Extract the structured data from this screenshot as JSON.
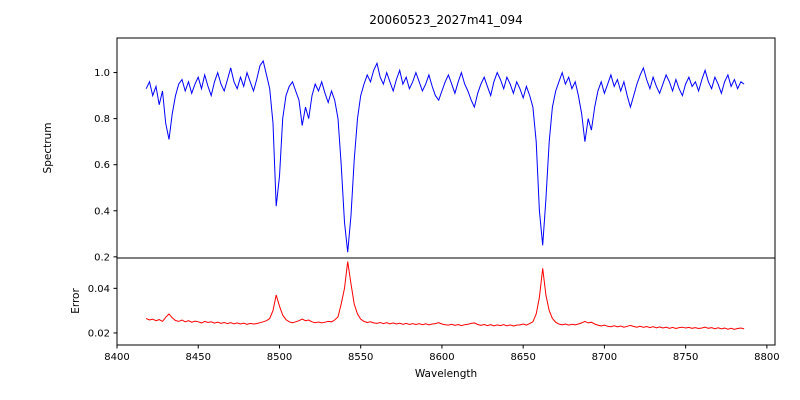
{
  "figure": {
    "background": "#ffffff",
    "axis_color": "#000000"
  },
  "chart_data": {
    "type": "line",
    "title": "20060523_2027m41_094",
    "xlabel": "Wavelength",
    "legend": "none",
    "grid": false,
    "x_start": 8418,
    "x_step": 2,
    "xlim": [
      8400,
      8805
    ],
    "xticks": [
      8400,
      8450,
      8500,
      8550,
      8600,
      8650,
      8700,
      8750,
      8800
    ],
    "xtick_labels": [
      "8400",
      "8450",
      "8500",
      "8550",
      "8600",
      "8650",
      "8700",
      "8750",
      "8800"
    ],
    "subplots": [
      {
        "name": "spectrum",
        "ylabel": "Spectrum",
        "color": "#0000ff",
        "ylim": [
          0.195,
          1.15
        ],
        "yticks": [
          0.2,
          0.4,
          0.6,
          0.8,
          1.0
        ],
        "ytick_labels": [
          "0.2",
          "0.4",
          "0.6",
          "0.8",
          "1.0"
        ],
        "absorption_lines_x": [
          8498,
          8542,
          8662
        ],
        "values": [
          0.93,
          0.96,
          0.9,
          0.94,
          0.86,
          0.92,
          0.78,
          0.71,
          0.82,
          0.9,
          0.95,
          0.97,
          0.92,
          0.96,
          0.91,
          0.95,
          0.98,
          0.93,
          0.99,
          0.94,
          0.9,
          0.96,
          1.0,
          0.95,
          0.92,
          0.97,
          1.02,
          0.96,
          0.93,
          0.98,
          0.94,
          1.0,
          0.96,
          0.92,
          0.97,
          1.03,
          1.05,
          0.99,
          0.93,
          0.78,
          0.42,
          0.55,
          0.8,
          0.9,
          0.94,
          0.96,
          0.92,
          0.88,
          0.77,
          0.85,
          0.8,
          0.9,
          0.95,
          0.92,
          0.96,
          0.91,
          0.87,
          0.92,
          0.88,
          0.8,
          0.6,
          0.35,
          0.22,
          0.38,
          0.62,
          0.8,
          0.9,
          0.95,
          0.99,
          0.96,
          1.01,
          1.04,
          0.98,
          0.95,
          1.0,
          0.96,
          0.92,
          0.97,
          1.01,
          0.95,
          0.98,
          0.93,
          0.96,
          1.0,
          0.96,
          0.92,
          0.95,
          0.99,
          0.94,
          0.9,
          0.88,
          0.92,
          0.96,
          0.99,
          0.95,
          0.91,
          0.96,
          1.0,
          0.95,
          0.92,
          0.88,
          0.85,
          0.91,
          0.95,
          0.98,
          0.94,
          0.9,
          0.96,
          1.0,
          0.97,
          0.93,
          0.98,
          0.95,
          0.91,
          0.96,
          0.93,
          0.89,
          0.94,
          0.9,
          0.85,
          0.7,
          0.4,
          0.25,
          0.45,
          0.7,
          0.85,
          0.92,
          0.96,
          1.0,
          0.95,
          0.98,
          0.93,
          0.96,
          0.9,
          0.82,
          0.7,
          0.8,
          0.75,
          0.85,
          0.92,
          0.96,
          0.91,
          0.95,
          0.99,
          0.94,
          0.97,
          0.92,
          0.96,
          0.9,
          0.85,
          0.9,
          0.95,
          0.99,
          1.02,
          0.97,
          0.93,
          0.98,
          0.94,
          0.91,
          0.95,
          0.99,
          0.96,
          0.92,
          0.97,
          0.93,
          0.9,
          0.95,
          0.98,
          0.94,
          0.96,
          0.92,
          0.97,
          1.01,
          0.96,
          0.93,
          0.98,
          0.95,
          0.91,
          0.96,
          0.99,
          0.94,
          0.97,
          0.93,
          0.96,
          0.95
        ]
      },
      {
        "name": "error",
        "ylabel": "Error",
        "color": "#ff0000",
        "ylim": [
          0.0146,
          0.0536
        ],
        "yticks": [
          0.02,
          0.04
        ],
        "ytick_labels": [
          "0.02",
          "0.04"
        ],
        "peaks_x": [
          8498,
          8542,
          8662
        ],
        "values": [
          0.0265,
          0.0258,
          0.0262,
          0.0255,
          0.026,
          0.0252,
          0.027,
          0.0285,
          0.0268,
          0.0256,
          0.0252,
          0.0258,
          0.025,
          0.0255,
          0.0248,
          0.0253,
          0.025,
          0.0245,
          0.0252,
          0.0247,
          0.025,
          0.0244,
          0.0248,
          0.0243,
          0.0247,
          0.0242,
          0.0246,
          0.0241,
          0.0245,
          0.024,
          0.0244,
          0.0239,
          0.0243,
          0.024,
          0.0242,
          0.0246,
          0.025,
          0.0255,
          0.0265,
          0.03,
          0.037,
          0.032,
          0.028,
          0.026,
          0.025,
          0.0246,
          0.025,
          0.0255,
          0.0262,
          0.0255,
          0.0258,
          0.025,
          0.0246,
          0.0249,
          0.0245,
          0.0248,
          0.0252,
          0.025,
          0.0258,
          0.0272,
          0.033,
          0.04,
          0.052,
          0.042,
          0.033,
          0.0285,
          0.0262,
          0.0252,
          0.0247,
          0.025,
          0.0245,
          0.0243,
          0.0247,
          0.0242,
          0.0246,
          0.0241,
          0.0245,
          0.024,
          0.0244,
          0.0239,
          0.0243,
          0.0238,
          0.0242,
          0.0238,
          0.0242,
          0.0237,
          0.0241,
          0.0236,
          0.024,
          0.0242,
          0.0246,
          0.024,
          0.0237,
          0.0235,
          0.0239,
          0.0234,
          0.0238,
          0.0233,
          0.0237,
          0.0239,
          0.0243,
          0.0245,
          0.0238,
          0.0234,
          0.0238,
          0.0233,
          0.0237,
          0.0232,
          0.0236,
          0.0233,
          0.0237,
          0.0232,
          0.0236,
          0.0231,
          0.0235,
          0.0236,
          0.024,
          0.0235,
          0.0242,
          0.025,
          0.0285,
          0.036,
          0.049,
          0.037,
          0.03,
          0.0265,
          0.0248,
          0.024,
          0.0236,
          0.024,
          0.0235,
          0.0239,
          0.0236,
          0.024,
          0.0245,
          0.0252,
          0.0245,
          0.0248,
          0.024,
          0.0235,
          0.0231,
          0.0235,
          0.023,
          0.0228,
          0.0232,
          0.0227,
          0.0231,
          0.0226,
          0.023,
          0.0234,
          0.0229,
          0.0226,
          0.023,
          0.0225,
          0.0229,
          0.0224,
          0.0228,
          0.0223,
          0.0227,
          0.0222,
          0.0226,
          0.0221,
          0.0225,
          0.022,
          0.0224,
          0.0226,
          0.0222,
          0.0225,
          0.0221,
          0.0224,
          0.022,
          0.0222,
          0.0226,
          0.0221,
          0.0224,
          0.0219,
          0.0223,
          0.0218,
          0.0222,
          0.0217,
          0.0221,
          0.0216,
          0.022,
          0.0222,
          0.0218
        ]
      }
    ]
  }
}
